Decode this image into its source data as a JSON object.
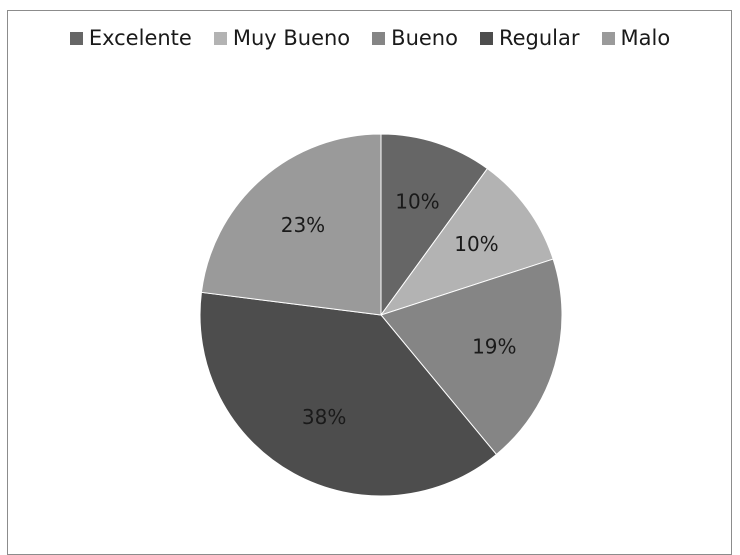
{
  "chart_data": {
    "type": "pie",
    "title": "",
    "legend_position": "top",
    "categories": [
      "Excelente",
      "Muy Bueno",
      "Bueno",
      "Regular",
      "Malo"
    ],
    "values": [
      10,
      10,
      19,
      38,
      23
    ],
    "labels": [
      "10%",
      "10%",
      "19%",
      "38%",
      "23%"
    ],
    "colors": [
      "#666666",
      "#b3b3b3",
      "#858585",
      "#4d4d4d",
      "#9a9a9a"
    ]
  }
}
